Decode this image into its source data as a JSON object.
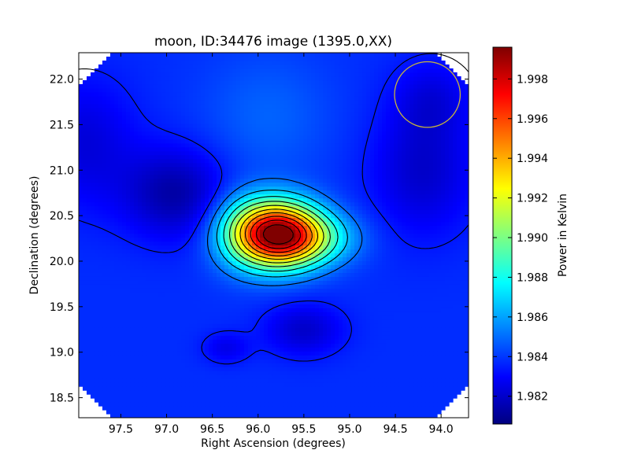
{
  "chart_data": {
    "type": "heatmap",
    "title": "moon, ID:34476 image (1395.0,XX)",
    "xlabel": "Right Ascension (degrees)",
    "ylabel": "Declination (degrees)",
    "colorbar_label": "Power in Kelvin",
    "xlim": [
      97.96,
      93.7
    ],
    "ylim": [
      18.28,
      22.29
    ],
    "x_ticks": [
      97.5,
      97.0,
      96.5,
      96.0,
      95.5,
      95.0,
      94.5,
      94.0
    ],
    "x_tick_labels": [
      "97.5",
      "97.0",
      "96.5",
      "96.0",
      "95.5",
      "95.0",
      "94.5",
      "94.0"
    ],
    "y_ticks": [
      18.5,
      19.0,
      19.5,
      20.0,
      20.5,
      21.0,
      21.5,
      22.0
    ],
    "y_tick_labels": [
      "18.5",
      "19.0",
      "19.5",
      "20.0",
      "20.5",
      "21.0",
      "21.5",
      "22.0"
    ],
    "clim": [
      1.9806,
      1.9996
    ],
    "colorbar_ticks": [
      1.982,
      1.984,
      1.986,
      1.988,
      1.99,
      1.992,
      1.994,
      1.996,
      1.998
    ],
    "colorbar_tick_labels": [
      "1.982",
      "1.984",
      "1.986",
      "1.988",
      "1.990",
      "1.992",
      "1.994",
      "1.996",
      "1.998"
    ],
    "colormap": "jet",
    "background_level": 1.9838,
    "peak": {
      "ra": 95.8,
      "dec": 20.3,
      "value": 1.9996
    },
    "components": [
      {
        "ra": 95.8,
        "dec": 20.3,
        "amp": 0.0148,
        "sigma_ra": 0.33,
        "sigma_dec": 0.25
      },
      {
        "ra": 95.4,
        "dec": 20.25,
        "amp": 0.0035,
        "sigma_ra": 0.35,
        "sigma_dec": 0.2
      },
      {
        "ra": 96.2,
        "dec": 20.35,
        "amp": 0.002,
        "sigma_ra": 0.25,
        "sigma_dec": 0.3
      },
      {
        "ra": 96.9,
        "dec": 20.75,
        "amp": -0.0025,
        "sigma_ra": 0.4,
        "sigma_dec": 0.35
      },
      {
        "ra": 95.5,
        "dec": 19.25,
        "amp": -0.0018,
        "sigma_ra": 0.3,
        "sigma_dec": 0.2
      },
      {
        "ra": 96.35,
        "dec": 19.05,
        "amp": -0.0012,
        "sigma_ra": 0.18,
        "sigma_dec": 0.12
      },
      {
        "ra": 94.2,
        "dec": 21.0,
        "amp": -0.0018,
        "sigma_ra": 0.4,
        "sigma_dec": 0.5
      },
      {
        "ra": 97.9,
        "dec": 21.3,
        "amp": -0.0015,
        "sigma_ra": 0.4,
        "sigma_dec": 0.5
      },
      {
        "ra": 95.9,
        "dec": 21.6,
        "amp": 0.001,
        "sigma_ra": 0.5,
        "sigma_dec": 0.5
      },
      {
        "ra": 94.1,
        "dec": 21.8,
        "amp": -0.0012,
        "sigma_ra": 0.3,
        "sigma_dec": 0.3
      }
    ],
    "contour_levels": [
      1.9834,
      1.985,
      1.9866,
      1.9882,
      1.9898,
      1.9914,
      1.993,
      1.9946,
      1.9962,
      1.9978,
      1.9994
    ],
    "beam_circle": {
      "ra": 94.15,
      "dec": 21.83,
      "radius_deg": 0.36,
      "color": "#c8b43c"
    },
    "data_region_corners": {
      "ra_min": 93.7,
      "ra_max": 97.96,
      "dec_min": 18.28,
      "dec_max": 22.29,
      "corner_cut_deg": 0.35
    }
  }
}
